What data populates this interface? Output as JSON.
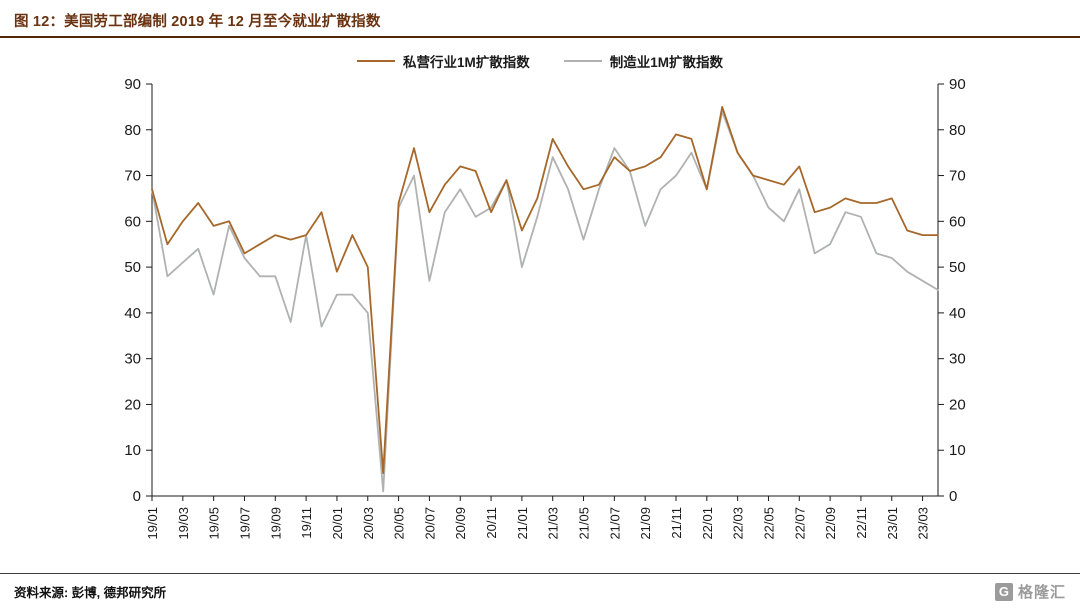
{
  "title": "图 12：美国劳工部编制 2019 年 12 月至今就业扩散指数",
  "footer": {
    "source": "资料来源: 彭博, 德邦研究所"
  },
  "logo": {
    "g": "G",
    "text": "格隆汇"
  },
  "colors": {
    "title": "#6a3210",
    "rule": "#52280c",
    "private": "#a5682a",
    "manufacturing": "#b0b2b1",
    "axis": "#1a1a1a",
    "footer_rule": "#3c3c3c",
    "logo": "#9b9b9b"
  },
  "legend": [
    {
      "label": "私营行业1M扩散指数",
      "color": "#a5682a"
    },
    {
      "label": "制造业1M扩散指数",
      "color": "#b0b2b1"
    }
  ],
  "chart_data": {
    "type": "line",
    "title": "美国劳工部编制2019年12月至今就业扩散指数",
    "xlabel": "",
    "ylabel": "",
    "ylim": [
      0,
      90
    ],
    "yticks": [
      0,
      10,
      20,
      30,
      40,
      50,
      60,
      70,
      80,
      90
    ],
    "grid": false,
    "legend_position": "top",
    "x": [
      "19/01",
      "19/02",
      "19/03",
      "19/04",
      "19/05",
      "19/06",
      "19/07",
      "19/08",
      "19/09",
      "19/10",
      "19/11",
      "19/12",
      "20/01",
      "20/02",
      "20/03",
      "20/04",
      "20/05",
      "20/06",
      "20/07",
      "20/08",
      "20/09",
      "20/10",
      "20/11",
      "20/12",
      "21/01",
      "21/02",
      "21/03",
      "21/04",
      "21/05",
      "21/06",
      "21/07",
      "21/08",
      "21/09",
      "21/10",
      "21/11",
      "21/12",
      "22/01",
      "22/02",
      "22/03",
      "22/04",
      "22/05",
      "22/06",
      "22/07",
      "22/08",
      "22/09",
      "22/10",
      "22/11",
      "22/12",
      "23/01",
      "23/02",
      "23/03",
      "23/04"
    ],
    "x_tick_labels": [
      "19/01",
      "19/03",
      "19/05",
      "19/07",
      "19/09",
      "19/11",
      "20/01",
      "20/03",
      "20/05",
      "20/07",
      "20/09",
      "20/11",
      "21/01",
      "21/03",
      "21/05",
      "21/07",
      "21/09",
      "21/11",
      "22/01",
      "22/03",
      "22/05",
      "22/07",
      "22/09",
      "22/11",
      "23/01",
      "23/03"
    ],
    "series": [
      {
        "name": "私营行业1M扩散指数",
        "color": "#a5682a",
        "values": [
          67,
          55,
          60,
          64,
          59,
          60,
          53,
          55,
          57,
          56,
          57,
          62,
          49,
          57,
          50,
          5,
          64,
          76,
          62,
          68,
          72,
          71,
          62,
          69,
          58,
          65,
          78,
          72,
          67,
          68,
          74,
          71,
          72,
          74,
          79,
          78,
          67,
          85,
          75,
          70,
          69,
          68,
          72,
          62,
          63,
          65,
          64,
          64,
          65,
          58,
          57,
          57
        ]
      },
      {
        "name": "制造业1M扩散指数",
        "color": "#b0b2b1",
        "values": [
          67,
          48,
          51,
          54,
          44,
          59,
          52,
          48,
          48,
          38,
          57,
          37,
          44,
          44,
          40,
          1,
          63,
          70,
          47,
          62,
          67,
          61,
          63,
          69,
          50,
          61,
          74,
          67,
          56,
          67,
          76,
          71,
          59,
          67,
          70,
          75,
          67,
          84,
          75,
          70,
          63,
          60,
          67,
          53,
          55,
          62,
          61,
          53,
          52,
          49,
          47,
          45
        ]
      }
    ]
  }
}
